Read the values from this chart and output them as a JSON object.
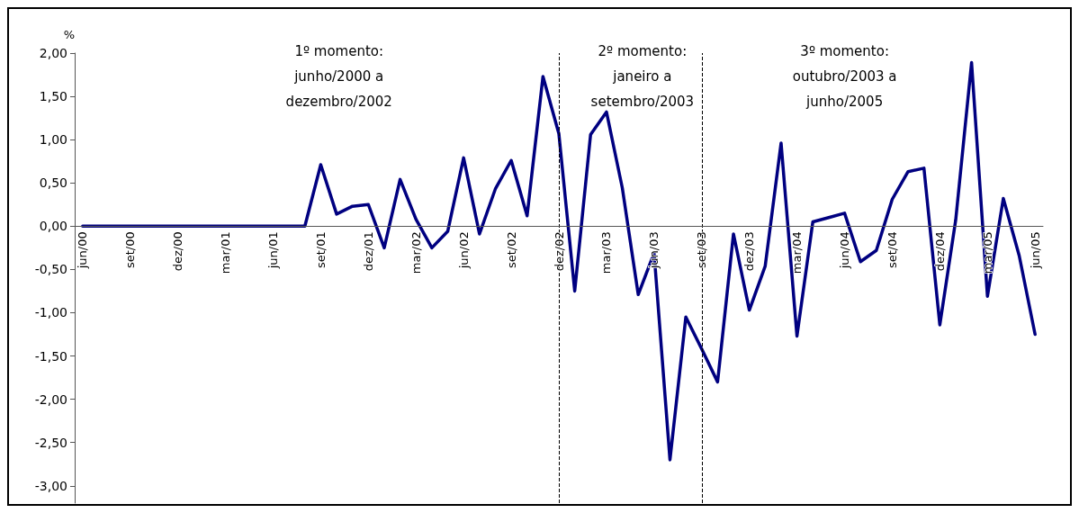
{
  "chart_data": {
    "type": "line",
    "ylabel": "%",
    "categories": [
      "jun/00",
      null,
      null,
      "set/00",
      null,
      null,
      "dez/00",
      null,
      null,
      "mar/01",
      null,
      null,
      "jun/01",
      null,
      null,
      "set/01",
      null,
      null,
      "dez/01",
      null,
      null,
      "mar/02",
      null,
      null,
      "jun/02",
      null,
      null,
      "set/02",
      null,
      null,
      "dez/02",
      null,
      null,
      "mar/03",
      null,
      null,
      "jun/03",
      null,
      null,
      "set/03",
      null,
      null,
      "dez/03",
      null,
      null,
      "mar/04",
      null,
      null,
      "jun/04",
      null,
      null,
      "set/04",
      null,
      null,
      "dez/04",
      null,
      null,
      "mar/05",
      null,
      null,
      "jun/05"
    ],
    "series": [
      {
        "color": "#000080",
        "values": [
          0,
          0,
          0,
          0,
          0,
          0,
          0,
          0,
          0,
          0,
          0,
          0,
          0,
          0,
          0,
          0.71,
          0.14,
          0.23,
          0.25,
          -0.25,
          0.54,
          0.08,
          -0.25,
          -0.06,
          0.79,
          -0.09,
          0.43,
          0.76,
          0.12,
          1.73,
          1.07,
          -0.75,
          1.06,
          1.32,
          0.44,
          -0.79,
          -0.31,
          -2.7,
          -1.05,
          -1.42,
          -1.8,
          -0.09,
          -0.97,
          -0.46,
          0.96,
          -1.27,
          0.05,
          0.1,
          0.15,
          -0.41,
          -0.28,
          0.31,
          0.63,
          0.67,
          -1.14,
          0.07,
          1.89,
          -0.81,
          0.32,
          -0.34,
          -1.25
        ]
      }
    ],
    "ylim": [
      -3.2,
      2
    ],
    "yticks": [
      {
        "value": -3,
        "label": "-3,00"
      },
      {
        "value": -2.5,
        "label": "-2,50"
      },
      {
        "value": -2,
        "label": "-2,00"
      },
      {
        "value": -1.5,
        "label": "-1,50"
      },
      {
        "value": -1,
        "label": "-1,00"
      },
      {
        "value": -0.5,
        "label": "-0,50"
      },
      {
        "value": 0,
        "label": "0,00"
      },
      {
        "value": 0.5,
        "label": "0,50"
      },
      {
        "value": 1,
        "label": "1,00"
      },
      {
        "value": 1.5,
        "label": "1,50"
      },
      {
        "value": 2,
        "label": "2,00"
      }
    ],
    "ref_lines": [
      {
        "axis": "x",
        "value": "dez/02",
        "color": "#000000",
        "line_style": "dashed"
      },
      {
        "axis": "x",
        "value": "set/03",
        "color": "#000000",
        "line_style": "dashed"
      }
    ],
    "annotations": [
      "1º momento:\njunho/2000 a\ndezembro/2002",
      "2º momento:\njaneiro a\nsetembro/2003",
      "3º momento:\noutubro/2003 a\njunho/2005"
    ],
    "grid": false,
    "marker": "none",
    "line_style": "solid"
  }
}
